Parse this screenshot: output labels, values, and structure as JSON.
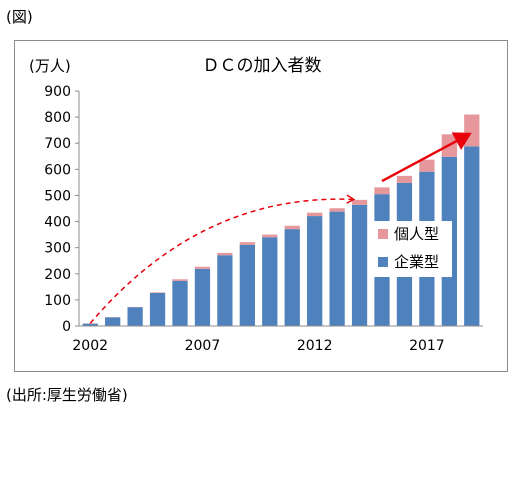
{
  "figure_label": "(図)",
  "source_note": "(出所:厚生労働省)",
  "chart_data": {
    "type": "bar",
    "stacked": true,
    "title": "ＤＣの加入者数",
    "ylabel": "(万人)",
    "xlabel": "",
    "ylim": [
      0,
      900
    ],
    "yticks": [
      0,
      100,
      200,
      300,
      400,
      500,
      600,
      700,
      800,
      900
    ],
    "years": [
      2002,
      2003,
      2004,
      2005,
      2006,
      2007,
      2008,
      2009,
      2010,
      2011,
      2012,
      2013,
      2014,
      2015,
      2016,
      2017,
      2018,
      2019
    ],
    "x_tick_labels": [
      "2002",
      "2007",
      "2012",
      "2017"
    ],
    "x_tick_label_years": [
      2002,
      2007,
      2012,
      2017
    ],
    "grid": false,
    "legend_position": "right",
    "series": [
      {
        "name": "企業型",
        "color": "#4f81bd",
        "values": [
          9,
          33,
          72,
          127,
          173,
          219,
          271,
          311,
          340,
          371,
          421,
          438,
          464,
          505,
          548,
          591,
          648,
          688
        ]
      },
      {
        "name": "個人型",
        "color": "#e5979b",
        "values": [
          1,
          1,
          1,
          2,
          6,
          8,
          9,
          10,
          10,
          13,
          13,
          13,
          19,
          26,
          27,
          46,
          86,
          122
        ]
      }
    ],
    "legend_order": [
      "個人型",
      "企業型"
    ],
    "annotations": [
      {
        "kind": "dashed-curve-arrow",
        "color": "#e8000b",
        "from": [
          2002,
          10
        ],
        "to": [
          2013.7,
          485
        ]
      },
      {
        "kind": "solid-arrow",
        "color": "#e8000b",
        "from": [
          2015,
          555
        ],
        "to": [
          2018.9,
          735
        ]
      }
    ]
  }
}
